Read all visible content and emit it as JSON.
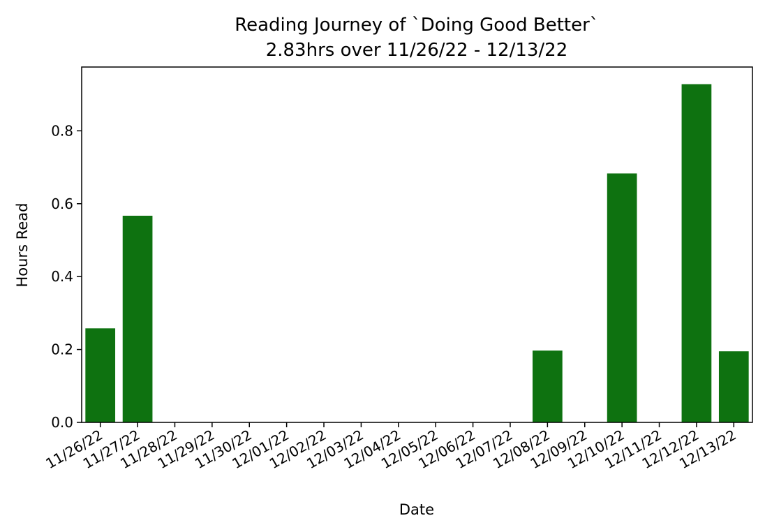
{
  "chart_data": {
    "type": "bar",
    "title": "Reading Journey of `Doing Good Better`",
    "subtitle": "2.83hrs over 11/26/22 - 12/13/22",
    "xlabel": "Date",
    "ylabel": "Hours Read",
    "categories": [
      "11/26/22",
      "11/27/22",
      "11/28/22",
      "11/29/22",
      "11/30/22",
      "12/01/22",
      "12/02/22",
      "12/03/22",
      "12/04/22",
      "12/05/22",
      "12/06/22",
      "12/07/22",
      "12/08/22",
      "12/09/22",
      "12/10/22",
      "12/11/22",
      "12/12/22",
      "12/13/22"
    ],
    "values": [
      0.258,
      0.567,
      0,
      0,
      0,
      0,
      0,
      0,
      0,
      0,
      0,
      0,
      0.197,
      0,
      0.683,
      0,
      0.928,
      0.195
    ],
    "ylim": [
      0,
      0.975
    ],
    "yticks": [
      "0.0",
      "0.2",
      "0.4",
      "0.6",
      "0.8"
    ],
    "ytick_values": [
      0,
      0.2,
      0.4,
      0.6,
      0.8
    ],
    "bar_color": "#0e7210",
    "grid": false,
    "legend": "none"
  }
}
